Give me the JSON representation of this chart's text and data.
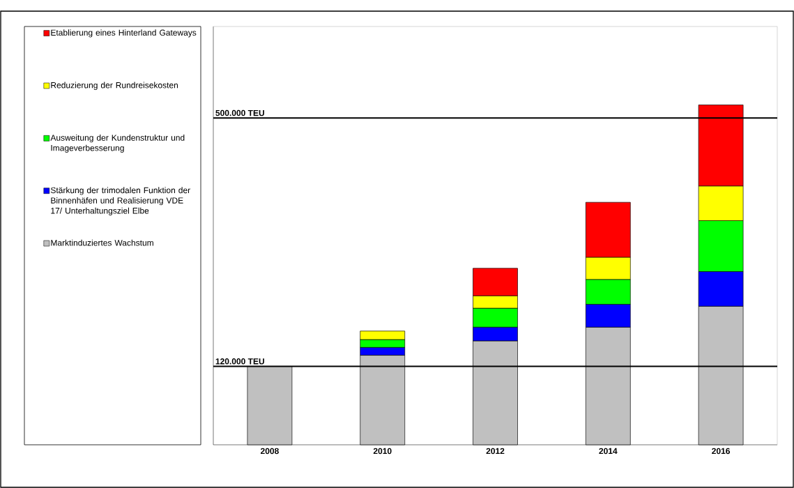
{
  "chart_data": {
    "type": "bar",
    "stacked": true,
    "categories": [
      "2008",
      "2010",
      "2012",
      "2014",
      "2016"
    ],
    "series": [
      {
        "name": "Marktinduziertes Wachstum",
        "color": "#c0c0c0",
        "values": [
          120000,
          137000,
          159000,
          180000,
          212000
        ]
      },
      {
        "name": "Stärkung der trimodalen Funktion der Binnenhäfen und Realisierung VDE 17/ Unterhaltungsziel Elbe",
        "color": "#0000ff",
        "values": [
          null,
          12000,
          21000,
          35000,
          53000
        ]
      },
      {
        "name": "Ausweitung der Kundenstruktur und Imageverbesserung",
        "color": "#00ff00",
        "values": [
          null,
          12000,
          29000,
          38000,
          78000
        ]
      },
      {
        "name": "Reduzierung der Rundreisekosten",
        "color": "#ffff00",
        "values": [
          null,
          13000,
          19000,
          34000,
          53000
        ]
      },
      {
        "name": "Etablierung eines Hinterland Gateways",
        "color": "#ff0000",
        "values": [
          null,
          null,
          42000,
          84000,
          124000
        ]
      }
    ],
    "ylim": [
      0,
      640000
    ],
    "ref_lines": [
      {
        "axis": "y",
        "value": 120000,
        "label": "120.000 TEU"
      },
      {
        "axis": "y",
        "value": 500000,
        "label": "500.000 TEU"
      }
    ],
    "legend": "left",
    "tick_labels": "x",
    "grid": false
  }
}
